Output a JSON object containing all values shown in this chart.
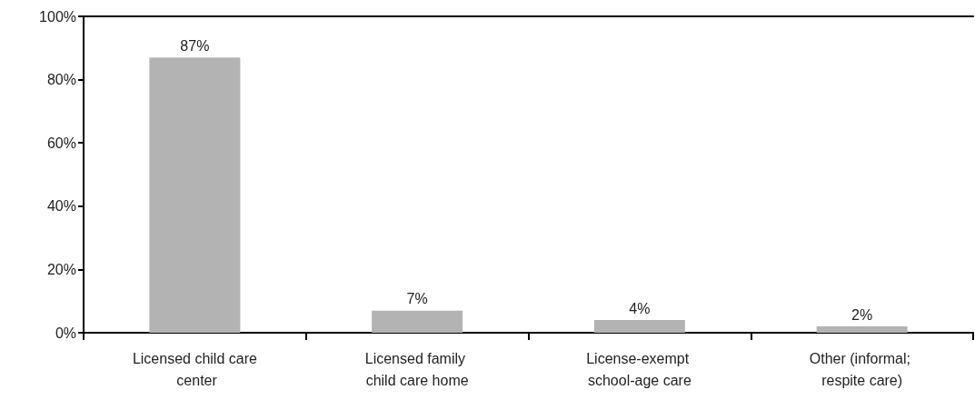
{
  "chart_data": {
    "type": "bar",
    "categories": [
      "Licensed child care center",
      "Licensed family child care home",
      "License-exempt school-age care",
      "Other (informal; respite care)"
    ],
    "values": [
      87,
      7,
      4,
      2
    ],
    "value_labels": [
      "87%",
      "7%",
      "4%",
      "2%"
    ],
    "color": "#b3b3b3",
    "ylim": [
      0,
      100
    ],
    "yticks": [
      {
        "value": 0,
        "label": "0%"
      },
      {
        "value": 20,
        "label": "20%"
      },
      {
        "value": 40,
        "label": "40%"
      },
      {
        "value": 60,
        "label": "60%"
      },
      {
        "value": 80,
        "label": "80%"
      },
      {
        "value": 100,
        "label": "100%"
      }
    ],
    "grid": false
  }
}
